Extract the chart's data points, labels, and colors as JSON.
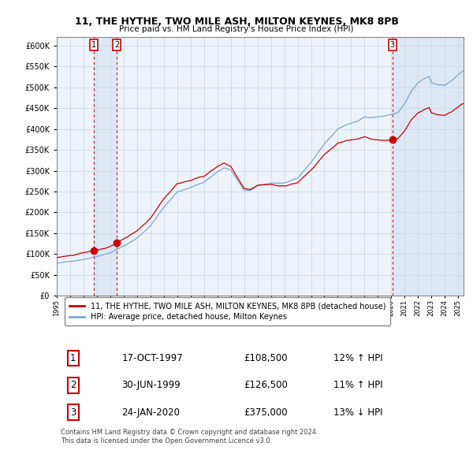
{
  "title": "11, THE HYTHE, TWO MILE ASH, MILTON KEYNES, MK8 8PB",
  "subtitle": "Price paid vs. HM Land Registry's House Price Index (HPI)",
  "ylim": [
    0,
    620000
  ],
  "yticks": [
    0,
    50000,
    100000,
    150000,
    200000,
    250000,
    300000,
    350000,
    400000,
    450000,
    500000,
    550000,
    600000
  ],
  "xlim_start": 1995.0,
  "xlim_end": 2025.4,
  "legend_line1": "11, THE HYTHE, TWO MILE ASH, MILTON KEYNES, MK8 8PB (detached house)",
  "legend_line2": "HPI: Average price, detached house, Milton Keynes",
  "footer": "Contains HM Land Registry data © Crown copyright and database right 2024.\nThis data is licensed under the Open Government Licence v3.0.",
  "sale_color": "#cc0000",
  "hpi_color": "#7aaad0",
  "bg_color": "#dce8f5",
  "sales": [
    {
      "label": "1",
      "date": 1997.79,
      "price": 108500,
      "note": "17-OCT-1997",
      "pct": "12%",
      "dir": "↑"
    },
    {
      "label": "2",
      "date": 1999.49,
      "price": 126500,
      "note": "30-JUN-1999",
      "pct": "11%",
      "dir": "↑"
    },
    {
      "label": "3",
      "date": 2020.07,
      "price": 375000,
      "note": "24-JAN-2020",
      "pct": "13%",
      "dir": "↓"
    }
  ],
  "row_data": [
    [
      "1",
      "17-OCT-1997",
      "£108,500",
      "12% ↑ HPI"
    ],
    [
      "2",
      "30-JUN-1999",
      "£126,500",
      "11% ↑ HPI"
    ],
    [
      "3",
      "24-JAN-2020",
      "£375,000",
      "13% ↓ HPI"
    ]
  ]
}
